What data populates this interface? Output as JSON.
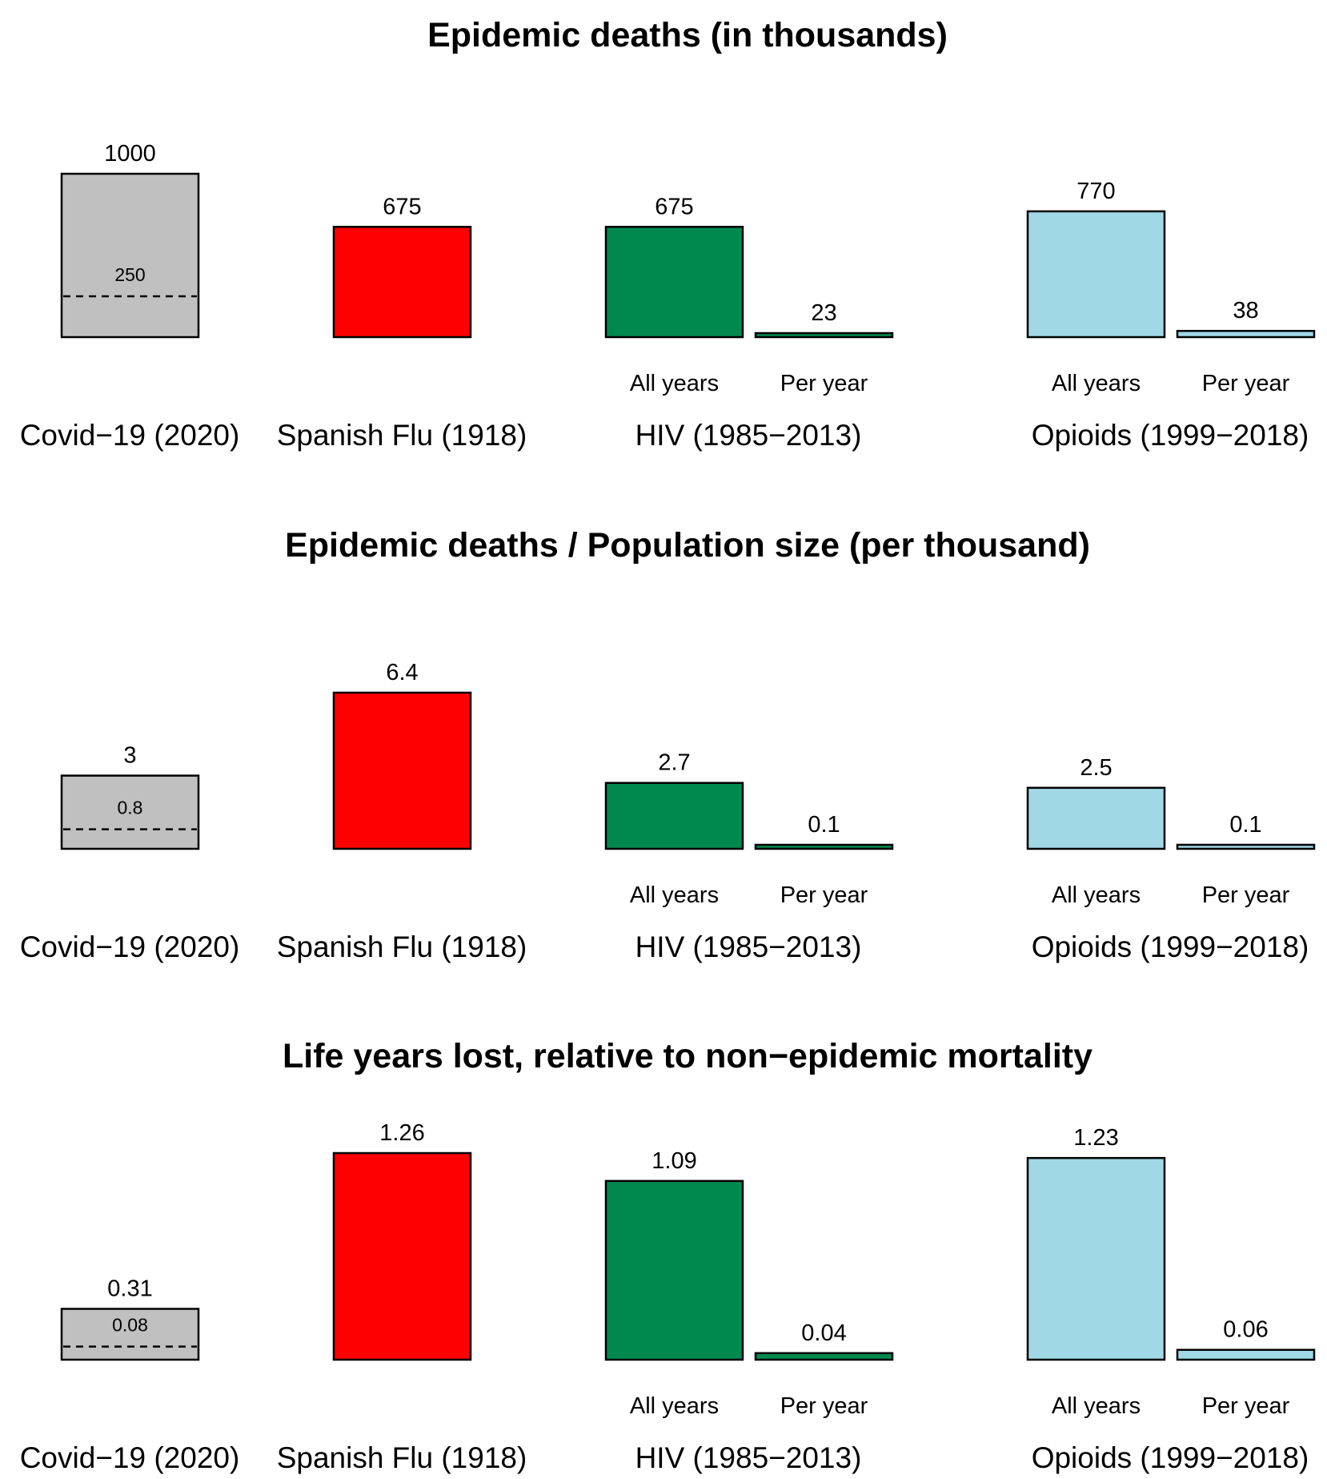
{
  "colors": {
    "covid": "#c0c0c0",
    "spanish_flu": "#ff0000",
    "hiv": "#00894f",
    "opioids": "#a0d8e6"
  },
  "chart_data": [
    {
      "type": "bar",
      "title": "Epidemic deaths (in thousands)",
      "groups": [
        {
          "label": "Covid−19 (2020)",
          "color": "covid",
          "bars": [
            {
              "sublabel": "",
              "value": 1000,
              "label": "1000"
            }
          ],
          "reference": {
            "value": 250,
            "label": "250"
          }
        },
        {
          "label": "Spanish Flu (1918)",
          "color": "spanish_flu",
          "bars": [
            {
              "sublabel": "",
              "value": 675,
              "label": "675"
            }
          ]
        },
        {
          "label": "HIV (1985−2013)",
          "color": "hiv",
          "bars": [
            {
              "sublabel": "All years",
              "value": 675,
              "label": "675"
            },
            {
              "sublabel": "Per year",
              "value": 23,
              "label": "23"
            }
          ]
        },
        {
          "label": "Opioids (1999−2018)",
          "color": "opioids",
          "bars": [
            {
              "sublabel": "All years",
              "value": 770,
              "label": "770"
            },
            {
              "sublabel": "Per year",
              "value": 38,
              "label": "38"
            }
          ]
        }
      ]
    },
    {
      "type": "bar",
      "title": "Epidemic deaths / Population size (per thousand)",
      "groups": [
        {
          "label": "Covid−19 (2020)",
          "color": "covid",
          "bars": [
            {
              "sublabel": "",
              "value": 3,
              "label": "3"
            }
          ],
          "reference": {
            "value": 0.8,
            "label": "0.8"
          }
        },
        {
          "label": "Spanish Flu (1918)",
          "color": "spanish_flu",
          "bars": [
            {
              "sublabel": "",
              "value": 6.4,
              "label": "6.4"
            }
          ]
        },
        {
          "label": "HIV (1985−2013)",
          "color": "hiv",
          "bars": [
            {
              "sublabel": "All years",
              "value": 2.7,
              "label": "2.7"
            },
            {
              "sublabel": "Per year",
              "value": 0.1,
              "label": "0.1"
            }
          ]
        },
        {
          "label": "Opioids (1999−2018)",
          "color": "opioids",
          "bars": [
            {
              "sublabel": "All years",
              "value": 2.5,
              "label": "2.5"
            },
            {
              "sublabel": "Per year",
              "value": 0.1,
              "label": "0.1"
            }
          ]
        }
      ]
    },
    {
      "type": "bar",
      "title": "Life years lost, relative to non−epidemic mortality",
      "groups": [
        {
          "label": "Covid−19 (2020)",
          "color": "covid",
          "bars": [
            {
              "sublabel": "",
              "value": 0.31,
              "label": "0.31"
            }
          ],
          "reference": {
            "value": 0.08,
            "label": "0.08"
          }
        },
        {
          "label": "Spanish Flu (1918)",
          "color": "spanish_flu",
          "bars": [
            {
              "sublabel": "",
              "value": 1.26,
              "label": "1.26"
            }
          ]
        },
        {
          "label": "HIV (1985−2013)",
          "color": "hiv",
          "bars": [
            {
              "sublabel": "All years",
              "value": 1.09,
              "label": "1.09"
            },
            {
              "sublabel": "Per year",
              "value": 0.04,
              "label": "0.04"
            }
          ]
        },
        {
          "label": "Opioids (1999−2018)",
          "color": "opioids",
          "bars": [
            {
              "sublabel": "All years",
              "value": 1.23,
              "label": "1.23"
            },
            {
              "sublabel": "Per year",
              "value": 0.06,
              "label": "0.06"
            }
          ]
        }
      ]
    }
  ]
}
